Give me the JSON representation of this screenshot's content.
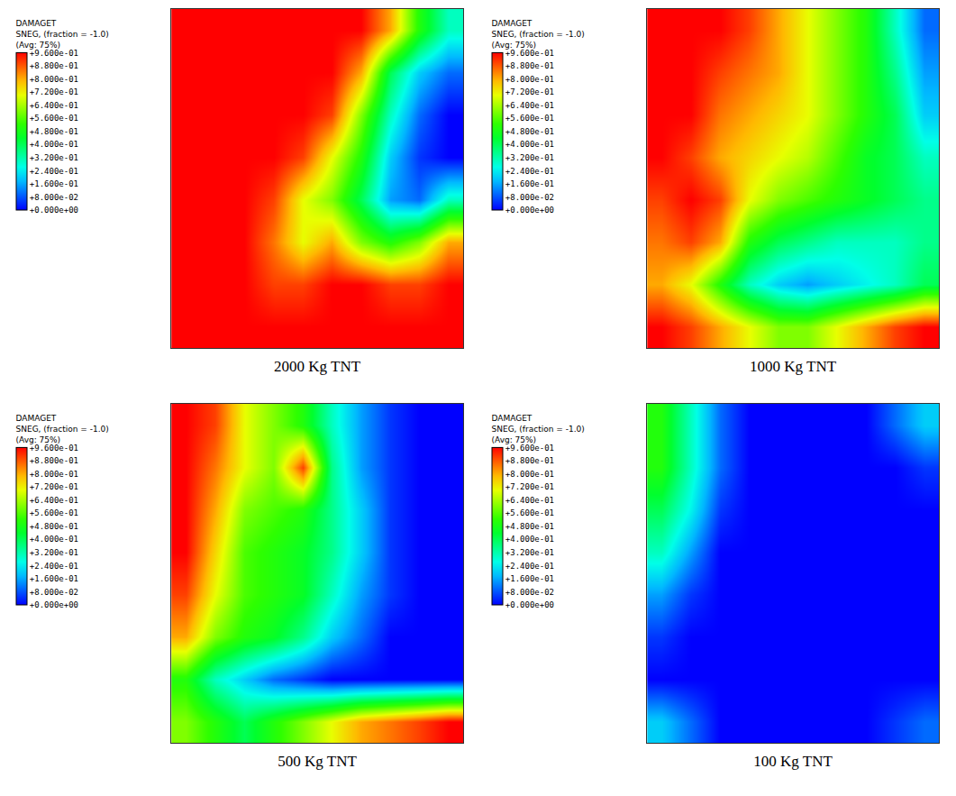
{
  "chart_data": [
    {
      "type": "heatmap",
      "title": "2000 Kg TNT",
      "colorbar_title": [
        "DAMAGET",
        "SNEG, (fraction = -1.0)",
        "(Avg: 75%)"
      ],
      "tick_labels": false,
      "colorbar_range": [
        0,
        0.96
      ],
      "colorbar_ticks": [
        {
          "value": 0,
          "label": "+0.000e+00"
        },
        {
          "value": 0.08,
          "label": "+8.000e-02"
        },
        {
          "value": 0.16,
          "label": "+1.600e-01"
        },
        {
          "value": 0.24,
          "label": "+2.400e-01"
        },
        {
          "value": 0.32,
          "label": "+3.200e-01"
        },
        {
          "value": 0.4,
          "label": "+4.000e-01"
        },
        {
          "value": 0.48,
          "label": "+4.800e-01"
        },
        {
          "value": 0.56,
          "label": "+5.600e-01"
        },
        {
          "value": 0.64,
          "label": "+6.400e-01"
        },
        {
          "value": 0.72,
          "label": "+7.200e-01"
        },
        {
          "value": 0.8,
          "label": "+8.000e-01"
        },
        {
          "value": 0.88,
          "label": "+8.800e-01"
        },
        {
          "value": 0.96,
          "label": "+9.600e-01"
        }
      ],
      "cells": [
        [
          0.96,
          0.96,
          0.96,
          0.96,
          0.96,
          0.96,
          0.96,
          0.8,
          0.5,
          0.3
        ],
        [
          0.96,
          0.96,
          0.96,
          0.96,
          0.96,
          0.96,
          0.8,
          0.4,
          0.2,
          0.1
        ],
        [
          0.96,
          0.96,
          0.96,
          0.96,
          0.96,
          0.9,
          0.6,
          0.3,
          0.1,
          0
        ],
        [
          0.96,
          0.96,
          0.96,
          0.96,
          0.9,
          0.7,
          0.5,
          0.2,
          0.05,
          0
        ],
        [
          0.96,
          0.96,
          0.96,
          0.9,
          0.7,
          0.6,
          0.4,
          0.15,
          0.1,
          0.3
        ],
        [
          0.96,
          0.96,
          0.96,
          0.85,
          0.7,
          0.8,
          0.6,
          0.5,
          0.6,
          0.8
        ],
        [
          0.96,
          0.96,
          0.96,
          0.9,
          0.9,
          0.96,
          0.96,
          0.9,
          0.9,
          0.96
        ],
        [
          0.96,
          0.96,
          0.96,
          0.96,
          0.96,
          0.96,
          0.96,
          0.96,
          0.96,
          0.96
        ]
      ]
    },
    {
      "type": "heatmap",
      "title": "1000 Kg TNT",
      "colorbar_title": [
        "DAMAGET",
        "SNEG, (fraction = -1.0)",
        "(Avg: 75%)"
      ],
      "tick_labels": false,
      "colorbar_range": [
        0,
        0.96
      ],
      "colorbar_ticks": [
        {
          "value": 0,
          "label": "+0.000e+00"
        },
        {
          "value": 0.08,
          "label": "+8.000e-02"
        },
        {
          "value": 0.16,
          "label": "+1.600e-01"
        },
        {
          "value": 0.24,
          "label": "+2.400e-01"
        },
        {
          "value": 0.32,
          "label": "+3.200e-01"
        },
        {
          "value": 0.4,
          "label": "+4.000e-01"
        },
        {
          "value": 0.48,
          "label": "+4.800e-01"
        },
        {
          "value": 0.56,
          "label": "+5.600e-01"
        },
        {
          "value": 0.64,
          "label": "+6.400e-01"
        },
        {
          "value": 0.72,
          "label": "+7.200e-01"
        },
        {
          "value": 0.8,
          "label": "+8.000e-01"
        },
        {
          "value": 0.88,
          "label": "+8.800e-01"
        },
        {
          "value": 0.96,
          "label": "+9.600e-01"
        }
      ],
      "cells": [
        [
          0.96,
          0.96,
          0.96,
          0.9,
          0.8,
          0.7,
          0.6,
          0.5,
          0.3,
          0.1
        ],
        [
          0.96,
          0.96,
          0.9,
          0.85,
          0.8,
          0.7,
          0.6,
          0.5,
          0.35,
          0.15
        ],
        [
          0.96,
          0.96,
          0.85,
          0.8,
          0.75,
          0.7,
          0.6,
          0.5,
          0.4,
          0.2
        ],
        [
          0.96,
          0.9,
          0.8,
          0.75,
          0.7,
          0.65,
          0.55,
          0.45,
          0.4,
          0.3
        ],
        [
          0.9,
          0.96,
          0.9,
          0.7,
          0.6,
          0.55,
          0.5,
          0.45,
          0.4,
          0.35
        ],
        [
          0.85,
          0.9,
          0.8,
          0.5,
          0.4,
          0.35,
          0.3,
          0.3,
          0.3,
          0.35
        ],
        [
          0.8,
          0.7,
          0.5,
          0.3,
          0.2,
          0.15,
          0.2,
          0.25,
          0.3,
          0.4
        ],
        [
          0.96,
          0.9,
          0.8,
          0.7,
          0.6,
          0.6,
          0.7,
          0.8,
          0.9,
          0.96
        ]
      ]
    },
    {
      "type": "heatmap",
      "title": "500 Kg TNT",
      "colorbar_title": [
        "DAMAGET",
        "SNEG, (fraction = -1.0)",
        "(Avg: 75%)"
      ],
      "tick_labels": false,
      "colorbar_range": [
        0,
        0.96
      ],
      "colorbar_ticks": [
        {
          "value": 0,
          "label": "+0.000e+00"
        },
        {
          "value": 0.08,
          "label": "+8.000e-02"
        },
        {
          "value": 0.16,
          "label": "+1.600e-01"
        },
        {
          "value": 0.24,
          "label": "+2.400e-01"
        },
        {
          "value": 0.32,
          "label": "+3.200e-01"
        },
        {
          "value": 0.4,
          "label": "+4.000e-01"
        },
        {
          "value": 0.48,
          "label": "+4.800e-01"
        },
        {
          "value": 0.56,
          "label": "+5.600e-01"
        },
        {
          "value": 0.64,
          "label": "+6.400e-01"
        },
        {
          "value": 0.72,
          "label": "+7.200e-01"
        },
        {
          "value": 0.8,
          "label": "+8.000e-01"
        },
        {
          "value": 0.88,
          "label": "+8.800e-01"
        },
        {
          "value": 0.96,
          "label": "+9.600e-01"
        }
      ],
      "cells": [
        [
          0.96,
          0.9,
          0.7,
          0.6,
          0.5,
          0.3,
          0.15,
          0.05,
          0,
          0
        ],
        [
          0.96,
          0.85,
          0.7,
          0.6,
          0.9,
          0.35,
          0.15,
          0.05,
          0,
          0
        ],
        [
          0.96,
          0.8,
          0.6,
          0.55,
          0.5,
          0.35,
          0.2,
          0.05,
          0,
          0
        ],
        [
          0.96,
          0.75,
          0.55,
          0.5,
          0.45,
          0.35,
          0.2,
          0.05,
          0,
          0
        ],
        [
          0.9,
          0.7,
          0.55,
          0.5,
          0.45,
          0.3,
          0.15,
          0.05,
          0,
          0
        ],
        [
          0.8,
          0.6,
          0.5,
          0.45,
          0.35,
          0.2,
          0.1,
          0,
          0,
          0
        ],
        [
          0.5,
          0.3,
          0.2,
          0.1,
          0.05,
          0,
          0,
          0,
          0,
          0
        ],
        [
          0.6,
          0.5,
          0.4,
          0.5,
          0.6,
          0.7,
          0.8,
          0.85,
          0.9,
          0.96
        ]
      ]
    },
    {
      "type": "heatmap",
      "title": "100 Kg TNT",
      "colorbar_title": [
        "DAMAGET",
        "SNEG, (fraction = -1.0)",
        "(Avg: 75%)"
      ],
      "tick_labels": false,
      "colorbar_range": [
        0,
        0.96
      ],
      "colorbar_ticks": [
        {
          "value": 0,
          "label": "+0.000e+00"
        },
        {
          "value": 0.08,
          "label": "+8.000e-02"
        },
        {
          "value": 0.16,
          "label": "+1.600e-01"
        },
        {
          "value": 0.24,
          "label": "+2.400e-01"
        },
        {
          "value": 0.32,
          "label": "+3.200e-01"
        },
        {
          "value": 0.4,
          "label": "+4.000e-01"
        },
        {
          "value": 0.48,
          "label": "+4.800e-01"
        },
        {
          "value": 0.56,
          "label": "+5.600e-01"
        },
        {
          "value": 0.64,
          "label": "+6.400e-01"
        },
        {
          "value": 0.72,
          "label": "+7.200e-01"
        },
        {
          "value": 0.8,
          "label": "+8.000e-01"
        },
        {
          "value": 0.88,
          "label": "+8.800e-01"
        },
        {
          "value": 0.96,
          "label": "+9.600e-01"
        }
      ],
      "cells": [
        [
          0.5,
          0.3,
          0.1,
          0,
          0,
          0,
          0,
          0,
          0.1,
          0.2
        ],
        [
          0.5,
          0.3,
          0.1,
          0,
          0,
          0,
          0,
          0,
          0,
          0.05
        ],
        [
          0.4,
          0.25,
          0.05,
          0,
          0,
          0,
          0,
          0,
          0,
          0
        ],
        [
          0.3,
          0.15,
          0,
          0,
          0,
          0,
          0,
          0,
          0,
          0
        ],
        [
          0.15,
          0.05,
          0,
          0,
          0,
          0,
          0,
          0,
          0,
          0
        ],
        [
          0.05,
          0,
          0,
          0,
          0,
          0,
          0,
          0,
          0,
          0
        ],
        [
          0,
          0,
          0,
          0,
          0,
          0,
          0,
          0,
          0,
          0
        ],
        [
          0.2,
          0.1,
          0,
          0,
          0,
          0,
          0,
          0,
          0.05,
          0.1
        ]
      ]
    }
  ]
}
